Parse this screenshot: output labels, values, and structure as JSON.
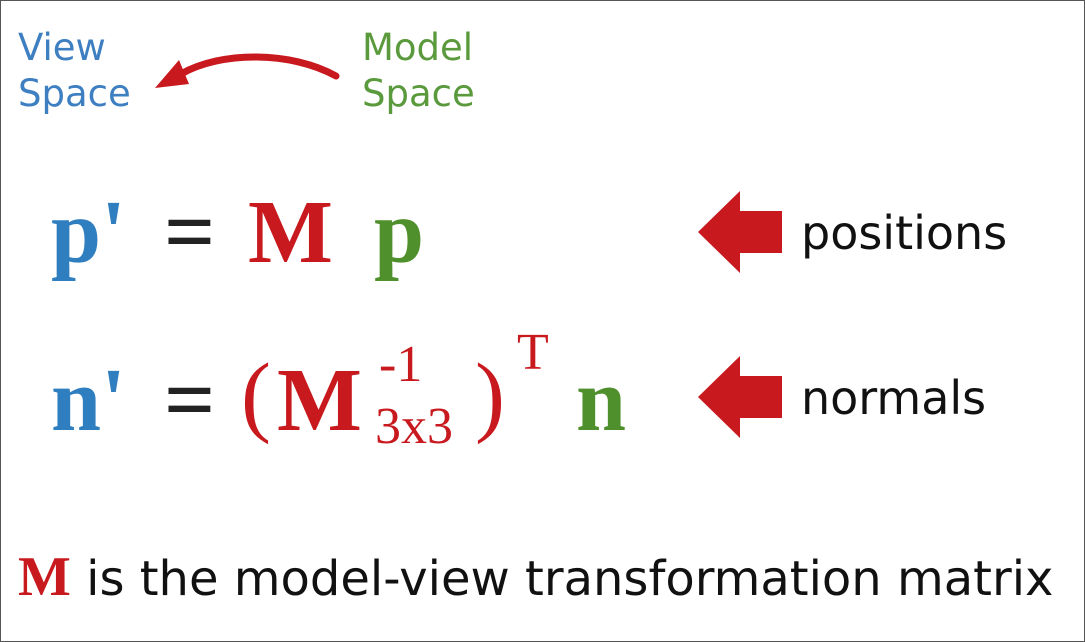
{
  "spaces": {
    "view_line1": "View",
    "view_line2": "Space",
    "model_line1": "Model",
    "model_line2": "Space"
  },
  "eq1": {
    "lhs": "p'",
    "equals": "=",
    "matrix": "M",
    "vector": "p",
    "label": "positions"
  },
  "eq2": {
    "lhs": "n'",
    "equals": "=",
    "open_paren": "(",
    "matrix": "M",
    "superscript": "-1",
    "subscript": "3x3",
    "close_paren": ")",
    "transpose": "T",
    "vector": "n",
    "label": "normals"
  },
  "footer": {
    "symbol": "M",
    "text": "is the model-view transformation matrix"
  },
  "colors": {
    "view": "#3d7fc1",
    "model": "#5a9a3c",
    "accent_red": "#c8191e"
  }
}
